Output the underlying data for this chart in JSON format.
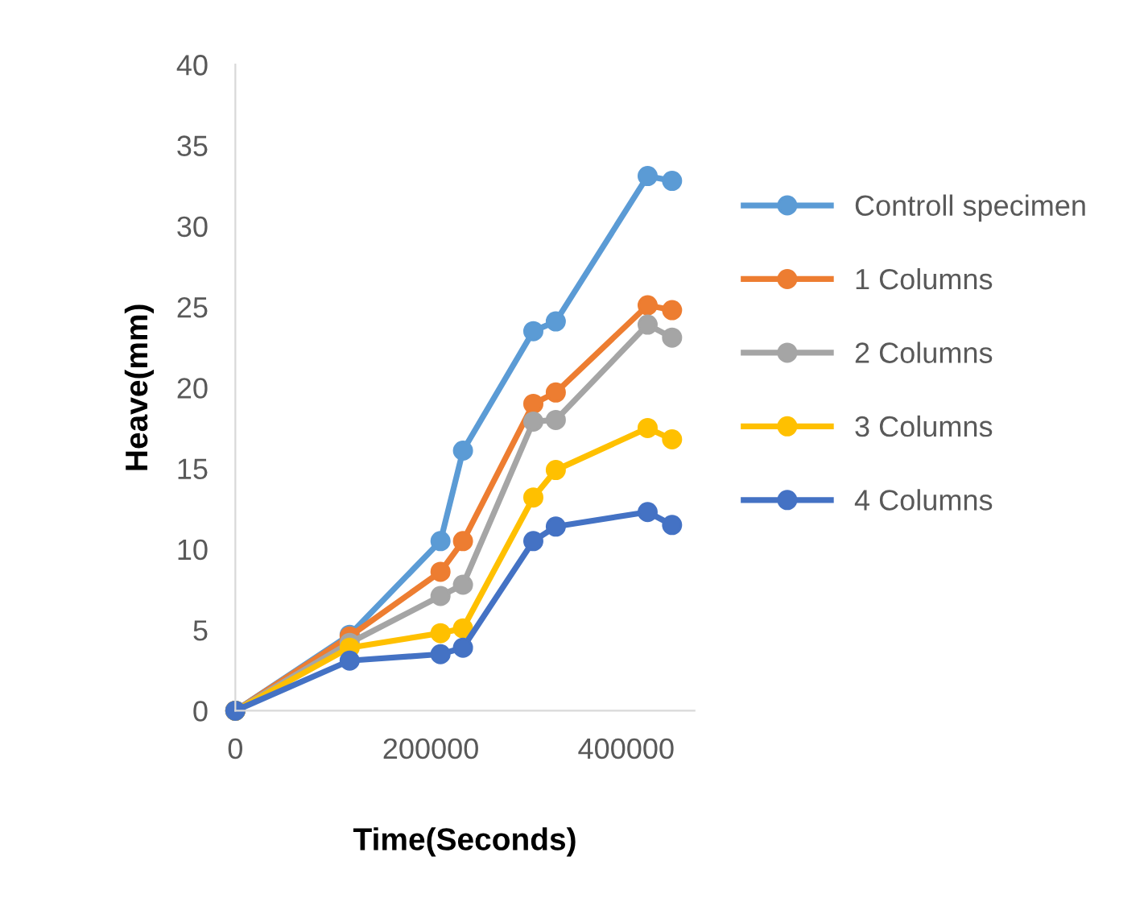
{
  "chart_data": {
    "type": "line",
    "xlabel": "Time(Seconds)",
    "ylabel": "Heave(mm)",
    "x": [
      0,
      117000,
      210000,
      233000,
      305000,
      328000,
      422000,
      447000
    ],
    "xlim": [
      0,
      470000
    ],
    "xticks": [
      0,
      200000,
      400000
    ],
    "ylim": [
      0,
      40
    ],
    "yticks": [
      0,
      5,
      10,
      15,
      20,
      25,
      30,
      35,
      40
    ],
    "grid": false,
    "legend": "right",
    "marker": "circle",
    "line_style": "solid",
    "series": [
      {
        "name": "Controll specimen",
        "color": "#5b9bd5",
        "values": [
          0,
          4.7,
          10.5,
          16.1,
          23.5,
          24.1,
          33.1,
          32.8
        ]
      },
      {
        "name": "1 Columns",
        "color": "#ed7d31",
        "values": [
          0,
          4.6,
          8.6,
          10.5,
          19.0,
          19.7,
          25.1,
          24.8
        ]
      },
      {
        "name": "2 Columns",
        "color": "#a5a5a5",
        "values": [
          0,
          4.2,
          7.1,
          7.8,
          17.9,
          18.0,
          23.9,
          23.1
        ]
      },
      {
        "name": "3 Columns",
        "color": "#ffc000",
        "values": [
          0,
          3.9,
          4.8,
          5.1,
          13.2,
          14.9,
          17.5,
          16.8
        ]
      },
      {
        "name": "4 Columns",
        "color": "#4472c4",
        "values": [
          0,
          3.1,
          3.5,
          3.9,
          10.5,
          11.4,
          12.3,
          11.5
        ]
      }
    ]
  }
}
